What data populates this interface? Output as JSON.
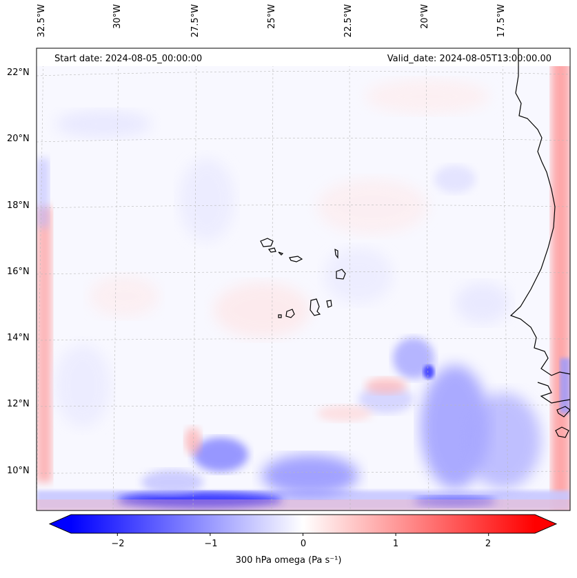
{
  "map": {
    "header_left": "Start date: 2024-08-05_00:00:00",
    "header_right": "Valid_date: 2024-08-05T13:00:00.00",
    "longitude_labels": [
      "32.5°W",
      "30°W",
      "27.5°W",
      "25°W",
      "22.5°W",
      "20°W",
      "17.5°W"
    ],
    "latitude_labels": [
      "22°N",
      "20°N",
      "18°N",
      "16°N",
      "14°N",
      "12°N",
      "10°N"
    ],
    "field": "300 hPa omega"
  },
  "colorbar": {
    "ticks": [
      "−2",
      "−1",
      "0",
      "1",
      "2"
    ],
    "tick_values": [
      -2,
      -1,
      0,
      1,
      2
    ],
    "range": [
      -2.5,
      2.5
    ],
    "label": "300 hPa omega (Pa s⁻¹)",
    "colors": {
      "low": "#0000ff",
      "mid": "#ffffff",
      "high": "#ff0000"
    }
  }
}
